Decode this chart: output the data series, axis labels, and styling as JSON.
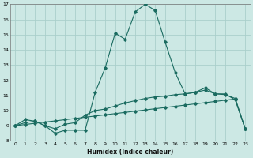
{
  "xlabel": "Humidex (Indice chaleur)",
  "ylabel": "",
  "background_color": "#cce8e4",
  "grid_color": "#aacfcb",
  "line_color": "#1a6b60",
  "xlim": [
    -0.5,
    23.5
  ],
  "ylim": [
    8,
    17
  ],
  "xticks": [
    0,
    1,
    2,
    3,
    4,
    5,
    6,
    7,
    8,
    9,
    10,
    11,
    12,
    13,
    14,
    15,
    16,
    17,
    18,
    19,
    20,
    21,
    22,
    23
  ],
  "yticks": [
    8,
    9,
    10,
    11,
    12,
    13,
    14,
    15,
    16,
    17
  ],
  "series1_x": [
    0,
    1,
    2,
    3,
    4,
    5,
    6,
    7,
    8,
    9,
    10,
    11,
    12,
    13,
    14,
    15,
    16,
    17,
    18,
    19,
    20,
    21,
    22,
    23
  ],
  "series1_y": [
    9.0,
    9.4,
    9.3,
    9.0,
    8.5,
    8.7,
    8.7,
    8.7,
    11.2,
    12.8,
    15.1,
    14.7,
    16.5,
    17.0,
    16.6,
    14.5,
    12.5,
    11.1,
    11.2,
    11.5,
    11.1,
    11.1,
    10.7,
    8.8
  ],
  "series2_x": [
    0,
    1,
    2,
    3,
    4,
    5,
    6,
    7,
    8,
    9,
    10,
    11,
    12,
    13,
    14,
    15,
    16,
    17,
    18,
    19,
    20,
    21,
    22,
    23
  ],
  "series2_y": [
    9.0,
    9.2,
    9.3,
    9.0,
    8.8,
    9.1,
    9.2,
    9.7,
    10.0,
    10.1,
    10.3,
    10.5,
    10.65,
    10.8,
    10.9,
    10.95,
    11.05,
    11.1,
    11.2,
    11.35,
    11.1,
    11.05,
    10.8,
    8.8
  ],
  "series3_x": [
    0,
    1,
    2,
    3,
    4,
    5,
    6,
    7,
    8,
    9,
    10,
    11,
    12,
    13,
    14,
    15,
    16,
    17,
    18,
    19,
    20,
    21,
    22,
    23
  ],
  "series3_y": [
    9.0,
    9.08,
    9.16,
    9.24,
    9.32,
    9.4,
    9.48,
    9.56,
    9.64,
    9.72,
    9.8,
    9.88,
    9.96,
    10.04,
    10.12,
    10.2,
    10.28,
    10.36,
    10.44,
    10.52,
    10.6,
    10.68,
    10.76,
    8.8
  ]
}
